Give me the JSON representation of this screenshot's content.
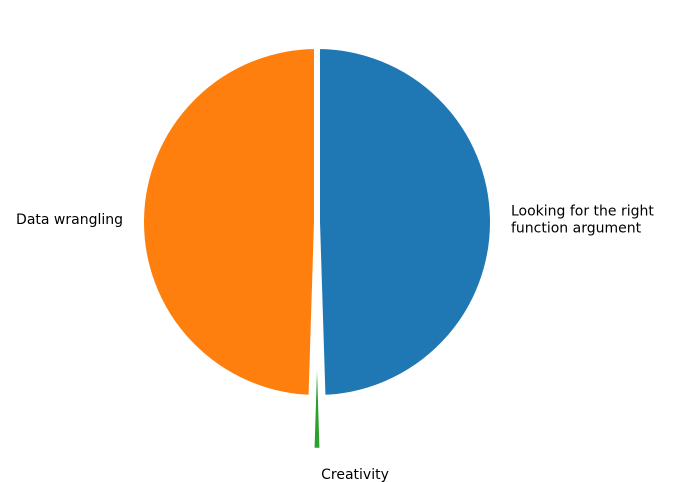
{
  "chart_data": {
    "type": "pie",
    "title": "",
    "start_angle_deg": 90,
    "direction": "clockwise",
    "slices": [
      {
        "label": "Looking for the right\nfunction argument",
        "value": 49.5,
        "color": "#1f77b4",
        "explode": 0.0,
        "label_side": "right"
      },
      {
        "label": "Creativity",
        "value": 1.0,
        "color": "#2ca02c",
        "explode": 0.3,
        "label_side": "bottom"
      },
      {
        "label": "Data wrangling",
        "value": 49.5,
        "color": "#ff7f0e",
        "explode": 0.0,
        "label_side": "left"
      }
    ]
  }
}
